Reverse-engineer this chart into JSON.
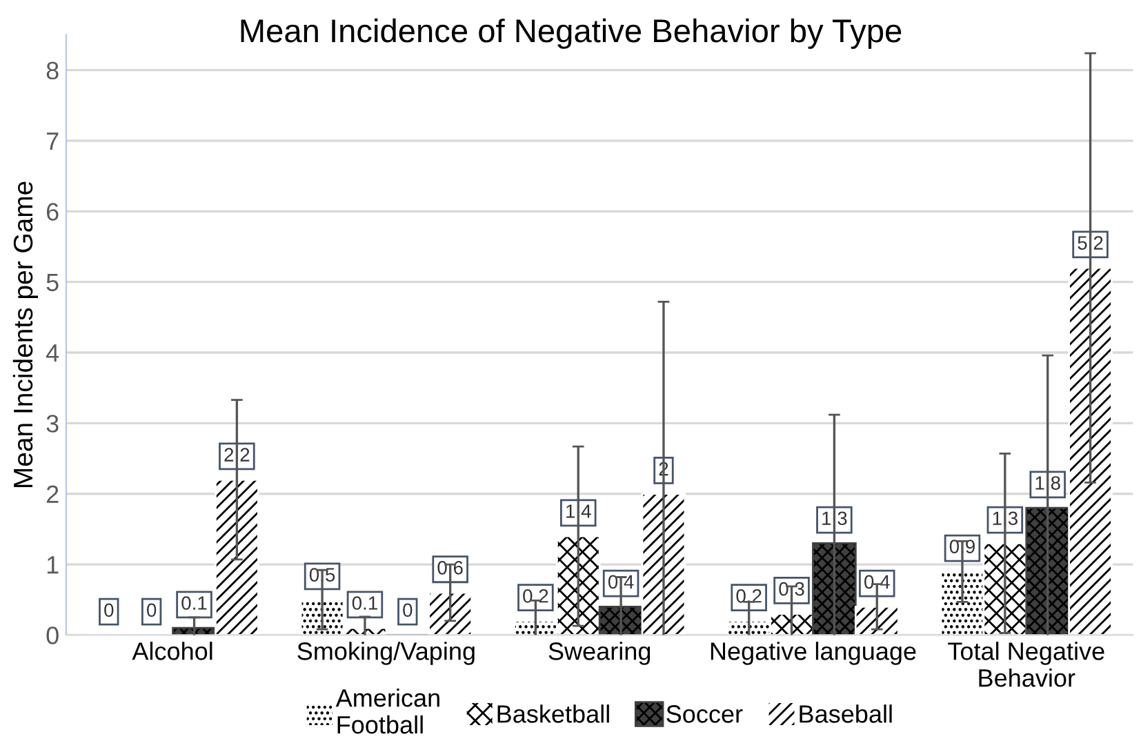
{
  "chart_data": {
    "type": "bar",
    "title": "Mean Incidence of Negative Behavior by Type",
    "ylabel": "Mean Incidents per Game",
    "categories": [
      "Alcohol",
      "Smoking/Vaping",
      "Swearing",
      "Negative language",
      "Total Negative\nBehavior"
    ],
    "series": [
      {
        "name": "American\nFootball",
        "color": "#ffffff",
        "values": [
          0,
          0.5,
          0.2,
          0.2,
          0.9
        ],
        "errors": [
          null,
          0.42,
          0.29,
          0.27,
          0.43
        ]
      },
      {
        "name": "Basketball",
        "color": "#ffffff",
        "values": [
          0,
          0.1,
          1.4,
          0.3,
          1.3
        ],
        "errors": [
          null,
          0.16,
          1.27,
          0.39,
          1.27
        ]
      },
      {
        "name": "Soccer",
        "color": "#404040",
        "values": [
          0.1,
          0,
          0.4,
          1.3,
          1.8
        ],
        "errors": [
          0.15,
          null,
          0.42,
          1.82,
          2.16
        ]
      },
      {
        "name": "Baseball",
        "color": "#ffffff",
        "values": [
          2.2,
          0.6,
          2,
          0.4,
          5.2
        ],
        "errors": [
          1.13,
          0.4,
          2.72,
          0.32,
          3.04
        ]
      }
    ],
    "ylim": [
      0,
      8.5
    ],
    "yticks": [
      0,
      1,
      2,
      3,
      4,
      5,
      6,
      7,
      8
    ],
    "grid": "y",
    "legend": "bottom",
    "data_labels": true
  }
}
